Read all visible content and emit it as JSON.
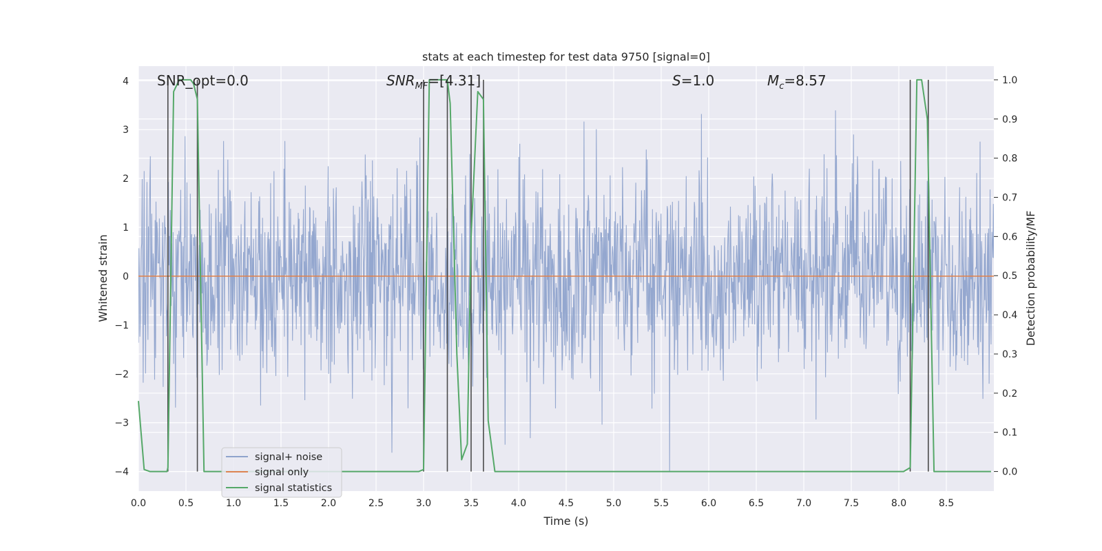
{
  "chart_data": {
    "type": "line",
    "title": "stats at each timestep for test data 9750 [signal=0]",
    "xlabel": "Time (s)",
    "ylabel_left": "Whitened strain",
    "ylabel_right": "Detection probability/MF",
    "xlim": [
      0,
      9.0
    ],
    "ylim_left": [
      -4.4,
      4.3
    ],
    "ylim_right": [
      -0.05,
      1.035
    ],
    "x_ticks": [
      0.0,
      0.5,
      1.0,
      1.5,
      2.0,
      2.5,
      3.0,
      3.5,
      4.0,
      4.5,
      5.0,
      5.5,
      6.0,
      6.5,
      7.0,
      7.5,
      8.0,
      8.5
    ],
    "x_tick_labels": [
      "0.0",
      "0.5",
      "1.0",
      "1.5",
      "2.0",
      "2.5",
      "3.0",
      "3.5",
      "4.0",
      "4.5",
      "5.0",
      "5.5",
      "6.0",
      "6.5",
      "7.0",
      "7.5",
      "8.0",
      "8.5"
    ],
    "y_left_ticks": [
      -4,
      -3,
      -2,
      -1,
      0,
      1,
      2,
      3,
      4
    ],
    "y_left_tick_labels": [
      "−4",
      "−3",
      "−2",
      "−1",
      "0",
      "1",
      "2",
      "3",
      "4"
    ],
    "y_right_ticks": [
      0.0,
      0.1,
      0.2,
      0.3,
      0.4,
      0.5,
      0.6,
      0.7,
      0.8,
      0.9,
      1.0
    ],
    "y_right_tick_labels": [
      "0.0",
      "0.1",
      "0.2",
      "0.3",
      "0.4",
      "0.5",
      "0.6",
      "0.7",
      "0.8",
      "0.9",
      "1.0"
    ],
    "grid": true,
    "legend_position": "lower-left",
    "annotations": {
      "snr_opt": "SNR_opt=0.0",
      "snr_mf_base": "SNR",
      "snr_mf_sub": "MF",
      "snr_mf_value": "=[4.31]",
      "s_base": "S",
      "s_value": "=1.0",
      "mc_base": "M",
      "mc_sub": "c",
      "mc_value": "=8.57"
    },
    "series": [
      {
        "name": "signal+ noise",
        "color": "#8fa3cc",
        "axis": "left",
        "description_values": "whitened noise, roughly uniform amplitude, most samples within ±2 with spikes to about ±3.5",
        "amplitude_envelope": 2.0,
        "spike_max": 3.7
      },
      {
        "name": "signal only",
        "color": "#dd8452",
        "axis": "left",
        "x": [
          0.0,
          9.0
        ],
        "y": [
          0.0,
          0.0
        ]
      },
      {
        "name": "signal statistics",
        "color": "#55a868",
        "axis": "right",
        "x": [
          0.0,
          0.06,
          0.12,
          0.3,
          0.31,
          0.37,
          0.43,
          0.55,
          0.58,
          0.62,
          0.69,
          0.72,
          2.95,
          3.0,
          3.06,
          3.25,
          3.28,
          3.35,
          3.4,
          3.46,
          3.5,
          3.57,
          3.63,
          3.68,
          3.75,
          8.05,
          8.12,
          8.19,
          8.24,
          8.3,
          8.37,
          8.97
        ],
        "y": [
          0.18,
          0.005,
          0.0,
          0.0,
          0.01,
          0.97,
          1.0,
          1.0,
          0.99,
          0.95,
          0.0,
          0.0,
          0.0,
          0.005,
          1.0,
          1.0,
          0.94,
          0.3,
          0.03,
          0.07,
          0.6,
          0.97,
          0.95,
          0.13,
          0.0,
          0.0,
          0.01,
          1.0,
          1.0,
          0.9,
          0.0,
          0.0
        ]
      }
    ],
    "vertical_lines_x": [
      0.31,
      0.62,
      3.0,
      3.25,
      3.5,
      3.63,
      8.12,
      8.31
    ],
    "vertical_line_color": "#4a4a4a"
  }
}
